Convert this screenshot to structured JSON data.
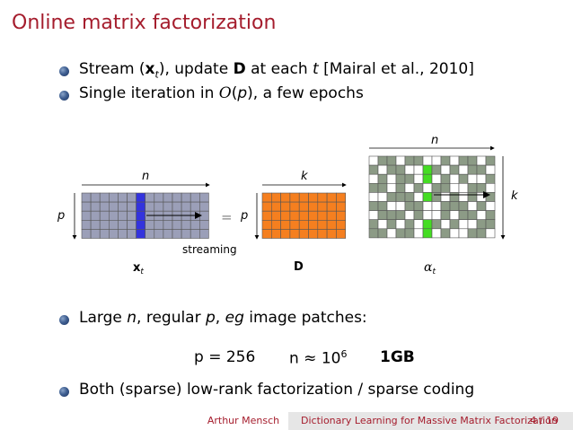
{
  "title": "Online matrix factorization",
  "bullets_top": [
    {
      "parts": [
        "Stream (",
        "x",
        "t",
        "), update ",
        "D",
        " at each ",
        "t",
        " [Mairal et al., 2010]"
      ]
    },
    {
      "parts": [
        "Single iteration in ",
        "O",
        "(",
        "p",
        "), a few epochs"
      ]
    }
  ],
  "figure": {
    "x_dim_top": "n",
    "x_dim_left": "p",
    "streaming_label": "streaming",
    "x_label": "x",
    "x_label_sub": "t",
    "equals": "=",
    "d_dim_top": "k",
    "d_dim_left": "p",
    "d_label": "D",
    "alpha_dim_top": "n",
    "alpha_dim_right": "k",
    "alpha_label": "α",
    "alpha_label_sub": "t",
    "colors": {
      "x_fill": "#9b9fb8",
      "x_highlight": "#3333dd",
      "d_fill": "#f57f1f",
      "alpha_fill": "#8c9b86",
      "alpha_highlight": "#44dd22"
    }
  },
  "bullets_bottom": [
    {
      "parts": [
        "Large ",
        "n",
        ", regular ",
        "p",
        ", ",
        "eg",
        " image patches:"
      ]
    },
    {
      "parts": [
        "Both (sparse) low-rank factorization / sparse coding"
      ]
    }
  ],
  "formula": {
    "p_eq": "p = 256",
    "n_approx": "n ≈ 10",
    "n_exp": "6",
    "size": "1GB"
  },
  "footer": {
    "author": "Arthur Mensch",
    "talk_title": "Dictionary Learning for Massive Matrix Factorization",
    "page": "4 / 19"
  }
}
